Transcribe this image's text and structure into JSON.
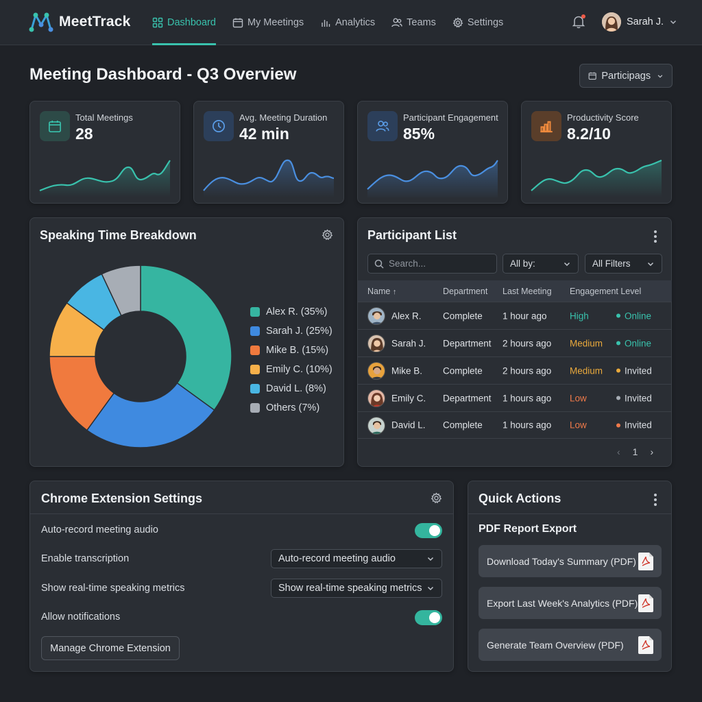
{
  "app": {
    "name": "MeetTrack"
  },
  "nav": {
    "items": [
      {
        "label": "Dashboard",
        "icon": "grid-icon",
        "active": true
      },
      {
        "label": "My Meetings",
        "icon": "calendar-icon",
        "active": false
      },
      {
        "label": "Analytics",
        "icon": "bar-chart-icon",
        "active": false
      },
      {
        "label": "Teams",
        "icon": "users-icon",
        "active": false
      },
      {
        "label": "Settings",
        "icon": "gear-icon",
        "active": false
      }
    ],
    "user_name": "Sarah J."
  },
  "page": {
    "title": "Meeting Dashboard - Q3 Overview",
    "filter_label": "Participags"
  },
  "kpis": [
    {
      "label": "Total Meetings",
      "value": "28",
      "icon": "calendar-icon",
      "color": "#39c2ad"
    },
    {
      "label": "Avg. Meeting Duration",
      "value": "42 min",
      "icon": "clock-icon",
      "color": "#4a8fe0"
    },
    {
      "label": "Participant Engagement",
      "value": "85%",
      "icon": "users-icon",
      "color": "#4a8fe0"
    },
    {
      "label": "Productivity Score",
      "value": "8.2/10",
      "icon": "bar-chart-icon",
      "color": "#e88a3c"
    }
  ],
  "speaking": {
    "title": "Speaking Time Breakdown",
    "legend": [
      {
        "label": "Alex R. (35%)",
        "color": "#36b5a1"
      },
      {
        "label": "Sarah J. (25%)",
        "color": "#3f8ae0"
      },
      {
        "label": "Mike B. (15%)",
        "color": "#f07a3e"
      },
      {
        "label": "Emily C. (10%)",
        "color": "#f7b04a"
      },
      {
        "label": "David L. (8%)",
        "color": "#49b6e3"
      },
      {
        "label": "Others (7%)",
        "color": "#a7adb5"
      }
    ]
  },
  "chart_data": {
    "type": "pie",
    "title": "Speaking Time Breakdown",
    "categories": [
      "Alex R.",
      "Sarah J.",
      "Mike B.",
      "Emily C.",
      "David L.",
      "Others"
    ],
    "values": [
      35,
      25,
      15,
      10,
      8,
      7
    ],
    "colors": [
      "#36b5a1",
      "#3f8ae0",
      "#f07a3e",
      "#f7b04a",
      "#49b6e3",
      "#a7adb5"
    ]
  },
  "participants": {
    "title": "Participant List",
    "search_placeholder": "Search...",
    "filter1": "All by:",
    "filter2": "All Filters",
    "columns": [
      "Name",
      "Department",
      "Last Meeting",
      "Engagement Level"
    ],
    "rows": [
      {
        "name": "Alex R.",
        "dept": "Complete",
        "last": "1 hour ago",
        "level": "High",
        "level_color": "#39c2ad",
        "status": "Online",
        "status_color": "#39c2ad"
      },
      {
        "name": "Sarah J.",
        "dept": "Department",
        "last": "2 hours ago",
        "level": "Medium",
        "level_color": "#e9a93c",
        "status": "Online",
        "status_color": "#39c2ad"
      },
      {
        "name": "Mike B.",
        "dept": "Complete",
        "last": "2 hours ago",
        "level": "Medium",
        "level_color": "#e9a93c",
        "status": "Invited",
        "status_color": "#e9a93c"
      },
      {
        "name": "Emily C.",
        "dept": "Department",
        "last": "1 hours ago",
        "level": "Low",
        "level_color": "#ef7a4a",
        "status": "Invited",
        "status_color": "#a7adb5"
      },
      {
        "name": "David L.",
        "dept": "Complete",
        "last": "1 hours ago",
        "level": "Low",
        "level_color": "#ef7a4a",
        "status": "Invited",
        "status_color": "#ef7a4a"
      }
    ],
    "page": "1"
  },
  "chrome": {
    "title": "Chrome Extension Settings",
    "auto_record": "Auto-record meeting audio",
    "auto_record_on": true,
    "transcription": "Enable transcription",
    "transcription_value": "Auto-record meeting audio",
    "metrics": "Show real-time speaking metrics",
    "metrics_value": "Show real-time speaking metrics",
    "notifications": "Allow notifications",
    "notifications_on": true,
    "manage": "Manage Chrome Extension"
  },
  "quick": {
    "title": "Quick Actions",
    "subtitle": "PDF Report Export",
    "actions": [
      {
        "label": "Download Today's Summary (PDF)"
      },
      {
        "label": "Export Last Week's Analytics (PDF)"
      },
      {
        "label": "Generate Team Overview (PDF)"
      }
    ]
  }
}
